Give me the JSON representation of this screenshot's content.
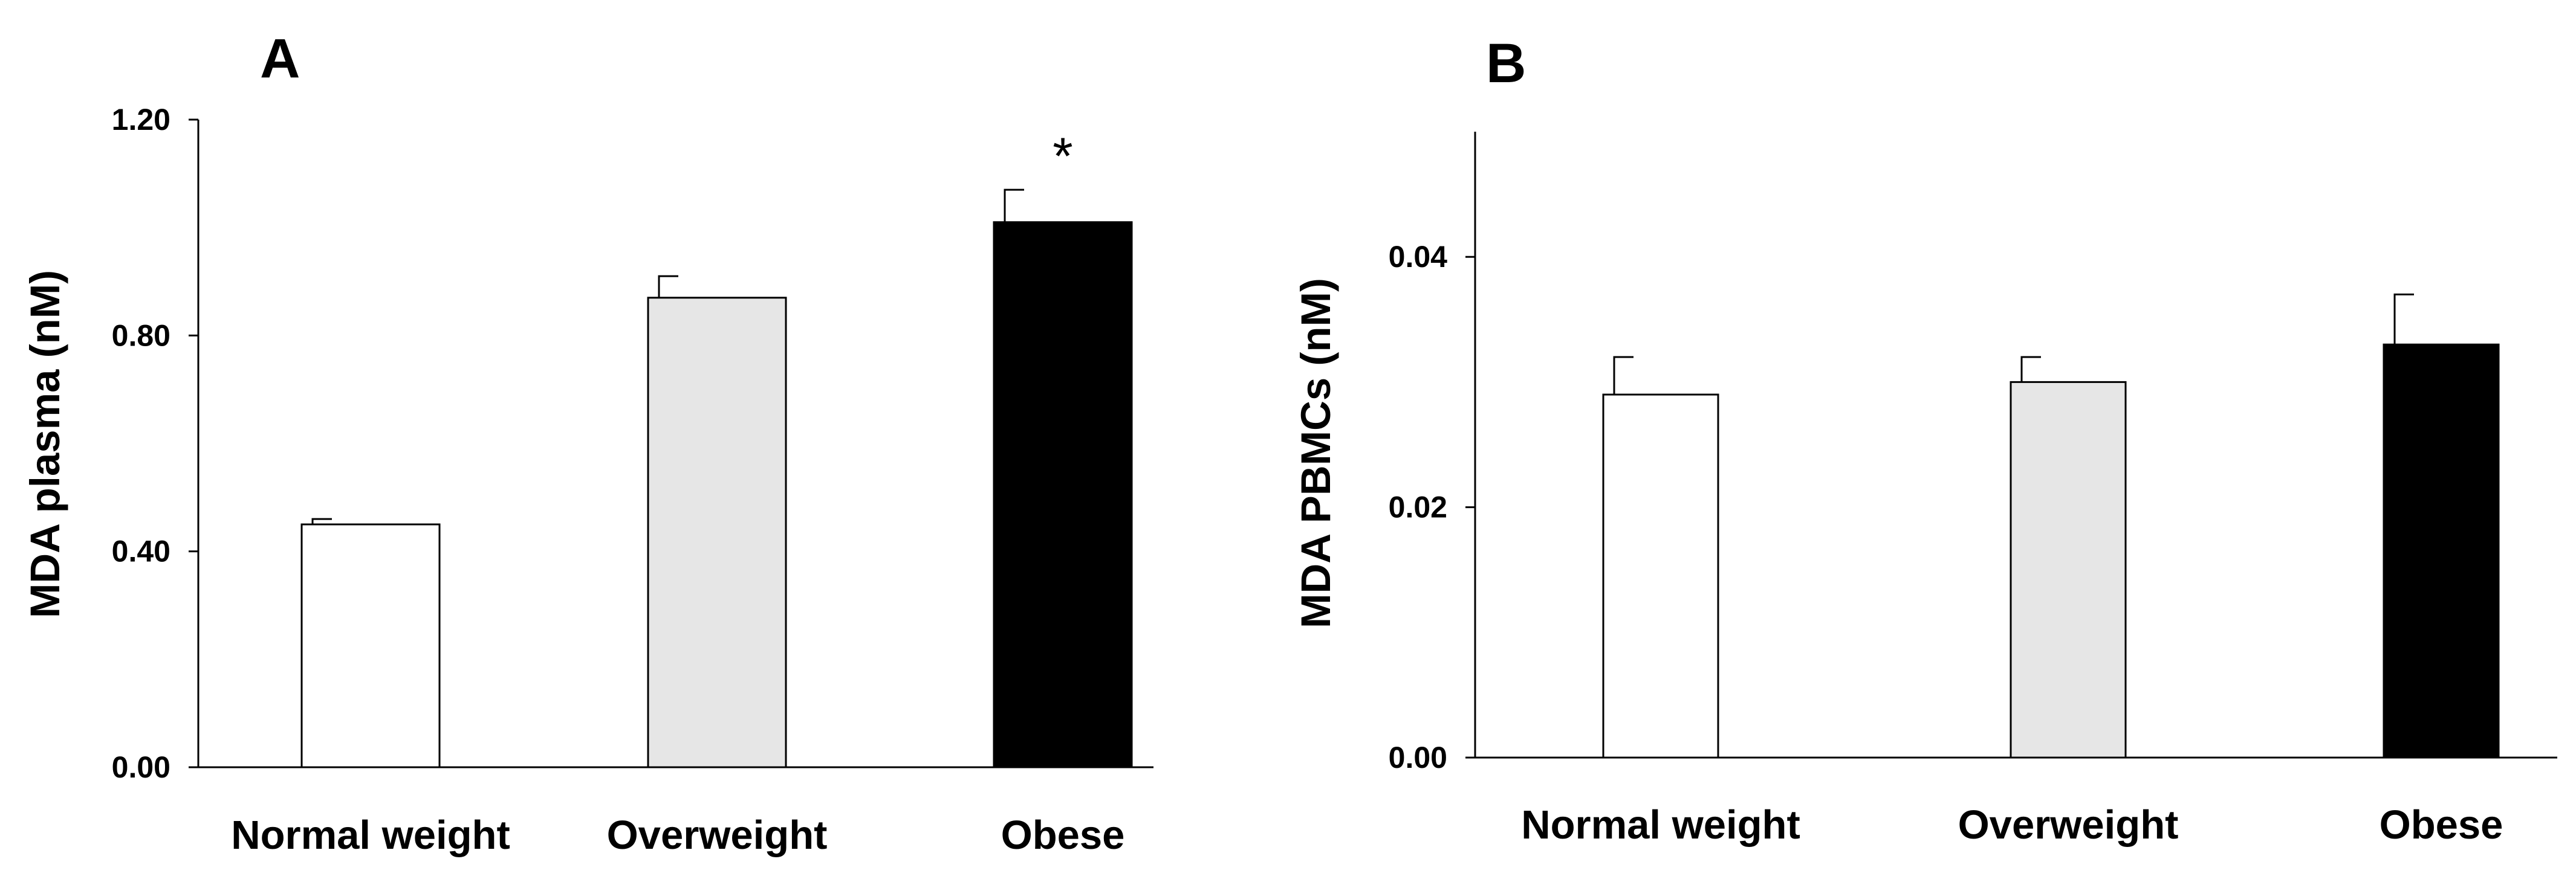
{
  "chart_data": [
    {
      "panel": "A",
      "type": "bar",
      "categories": [
        "Normal weight",
        "Overweight",
        "Obese"
      ],
      "values": [
        0.45,
        0.87,
        1.01
      ],
      "errors": [
        0.01,
        0.04,
        0.06
      ],
      "colors": [
        "#ffffff",
        "#e6e6e6",
        "#000000"
      ],
      "significance": [
        "",
        "",
        "*"
      ],
      "ylabel": "MDA plasma (nM)",
      "ylim": [
        0,
        1.2
      ],
      "yticks": [
        0.0,
        0.4,
        0.8,
        1.2
      ],
      "ytick_labels": [
        "0.00",
        "0.40",
        "0.80",
        "1.20"
      ]
    },
    {
      "panel": "B",
      "type": "bar",
      "categories": [
        "Normal weight",
        "Overweight",
        "Obese"
      ],
      "values": [
        0.029,
        0.03,
        0.033
      ],
      "errors": [
        0.003,
        0.002,
        0.004
      ],
      "colors": [
        "#ffffff",
        "#e6e6e6",
        "#000000"
      ],
      "significance": [
        "",
        "",
        ""
      ],
      "ylabel": "MDA PBMCs (nM)",
      "ylim": [
        0,
        0.05
      ],
      "yticks": [
        0.0,
        0.02,
        0.04
      ],
      "ytick_labels": [
        "0.00",
        "0.02",
        "0.04"
      ]
    }
  ]
}
